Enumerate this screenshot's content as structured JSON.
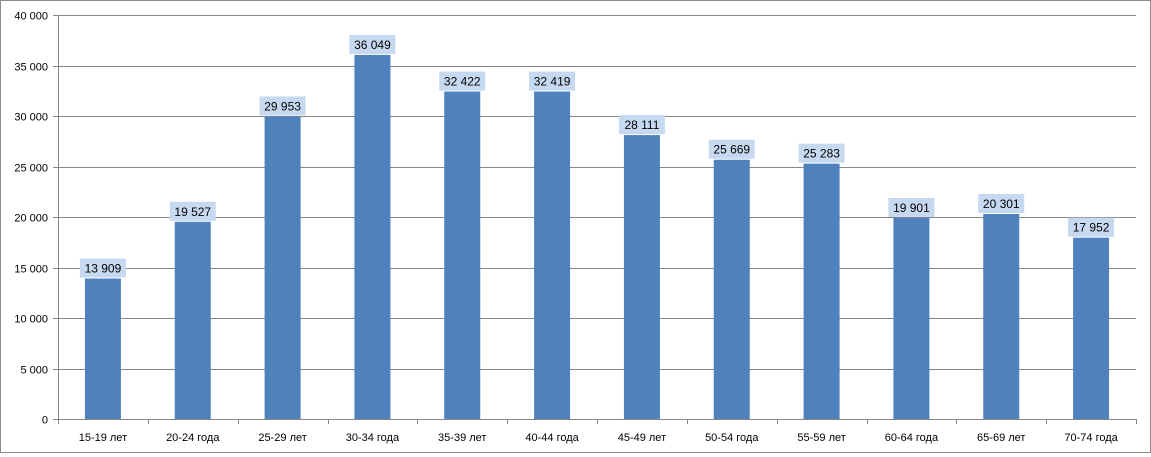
{
  "chart_data": {
    "type": "bar",
    "categories": [
      "15-19 лет",
      "20-24 года",
      "25-29 лет",
      "30-34 года",
      "35-39 лет",
      "40-44 года",
      "45-49 лет",
      "50-54 года",
      "55-59 лет",
      "60-64 года",
      "65-69 лет",
      "70-74 года"
    ],
    "values": [
      13909,
      19527,
      29953,
      36049,
      32422,
      32419,
      28111,
      25669,
      25283,
      19901,
      20301,
      17952
    ],
    "value_labels": [
      "13 909",
      "19 527",
      "29 953",
      "36 049",
      "32 422",
      "32 419",
      "28 111",
      "25 669",
      "25 283",
      "19 901",
      "20 301",
      "17 952"
    ],
    "y_ticks": [
      0,
      5000,
      10000,
      15000,
      20000,
      25000,
      30000,
      35000,
      40000
    ],
    "y_tick_labels": [
      "0",
      "5 000",
      "10 000",
      "15 000",
      "20 000",
      "25 000",
      "30 000",
      "35 000",
      "40 000"
    ],
    "ylim": [
      0,
      40000
    ],
    "title": "",
    "xlabel": "",
    "ylabel": "",
    "grid": true,
    "legend": "none",
    "colors": {
      "bar": "#4f81bd",
      "label_background": "#c6d9f1",
      "gridline": "#868686",
      "axis": "#868686"
    }
  }
}
